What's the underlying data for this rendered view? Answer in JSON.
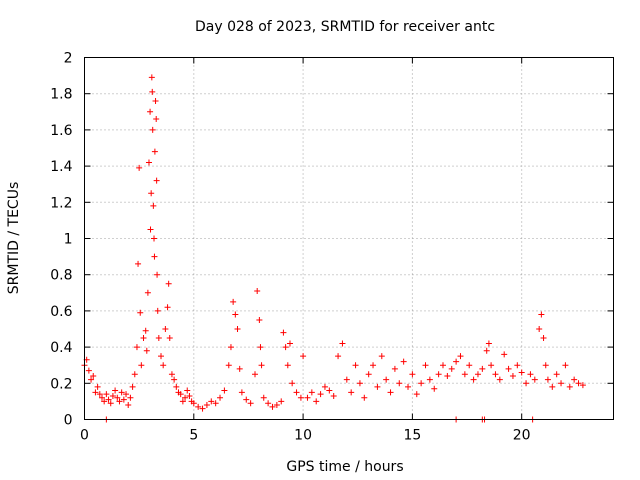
{
  "chart_data": {
    "type": "scatter",
    "title": "Day 028 of 2023, SRMTID for receiver antc",
    "xlabel": "GPS time / hours",
    "ylabel": "SRMTID / TECUs",
    "xlim": [
      0,
      24.2
    ],
    "ylim": [
      0,
      2
    ],
    "xticks": [
      0,
      5,
      10,
      15,
      20
    ],
    "xtick_labels": [
      "0",
      "5",
      "10",
      "15",
      "20"
    ],
    "yticks": [
      0,
      0.2,
      0.4,
      0.6,
      0.8,
      1,
      1.2,
      1.4,
      1.6,
      1.8,
      2
    ],
    "ytick_labels": [
      "0",
      "0.2",
      "0.4",
      "0.6",
      "0.8",
      "1",
      "1.2",
      "1.4",
      "1.6",
      "1.8",
      "2"
    ],
    "grid": true,
    "marker": "plus",
    "color": "#ff0000",
    "series": [
      {
        "name": "SRMTID",
        "points": [
          [
            0.0,
            0.3
          ],
          [
            0.1,
            0.33
          ],
          [
            0.2,
            0.27
          ],
          [
            0.3,
            0.22
          ],
          [
            0.4,
            0.24
          ],
          [
            0.5,
            0.15
          ],
          [
            0.6,
            0.18
          ],
          [
            0.7,
            0.14
          ],
          [
            0.8,
            0.12
          ],
          [
            0.9,
            0.1
          ],
          [
            1.0,
            0.14
          ],
          [
            1.1,
            0.11
          ],
          [
            1.2,
            0.09
          ],
          [
            1.3,
            0.13
          ],
          [
            1.4,
            0.16
          ],
          [
            1.5,
            0.12
          ],
          [
            1.6,
            0.1
          ],
          [
            1.7,
            0.15
          ],
          [
            1.8,
            0.11
          ],
          [
            1.9,
            0.14
          ],
          [
            2.0,
            0.08
          ],
          [
            2.1,
            0.12
          ],
          [
            2.2,
            0.18
          ],
          [
            2.3,
            0.25
          ],
          [
            2.4,
            0.4
          ],
          [
            2.45,
            0.86
          ],
          [
            2.5,
            1.39
          ],
          [
            2.55,
            0.59
          ],
          [
            2.6,
            0.3
          ],
          [
            2.7,
            0.45
          ],
          [
            2.8,
            0.49
          ],
          [
            2.85,
            0.38
          ],
          [
            2.9,
            0.7
          ],
          [
            2.95,
            1.42
          ],
          [
            3.0,
            1.7
          ],
          [
            3.02,
            1.05
          ],
          [
            3.05,
            1.25
          ],
          [
            3.08,
            1.89
          ],
          [
            3.1,
            1.81
          ],
          [
            3.12,
            1.6
          ],
          [
            3.15,
            1.18
          ],
          [
            3.18,
            1.0
          ],
          [
            3.2,
            0.9
          ],
          [
            3.22,
            1.48
          ],
          [
            3.25,
            1.76
          ],
          [
            3.28,
            1.66
          ],
          [
            3.3,
            1.32
          ],
          [
            3.32,
            0.8
          ],
          [
            3.35,
            0.6
          ],
          [
            3.4,
            0.45
          ],
          [
            3.5,
            0.35
          ],
          [
            3.6,
            0.3
          ],
          [
            3.7,
            0.5
          ],
          [
            3.8,
            0.62
          ],
          [
            3.85,
            0.75
          ],
          [
            3.9,
            0.45
          ],
          [
            4.0,
            0.25
          ],
          [
            4.1,
            0.22
          ],
          [
            4.2,
            0.18
          ],
          [
            4.3,
            0.15
          ],
          [
            4.4,
            0.14
          ],
          [
            4.5,
            0.1
          ],
          [
            4.6,
            0.12
          ],
          [
            4.7,
            0.16
          ],
          [
            4.8,
            0.13
          ],
          [
            4.9,
            0.1
          ],
          [
            5.0,
            0.09
          ],
          [
            5.2,
            0.07
          ],
          [
            5.4,
            0.06
          ],
          [
            5.6,
            0.08
          ],
          [
            5.8,
            0.1
          ],
          [
            6.0,
            0.09
          ],
          [
            6.2,
            0.12
          ],
          [
            6.4,
            0.16
          ],
          [
            6.6,
            0.3
          ],
          [
            6.7,
            0.4
          ],
          [
            6.8,
            0.65
          ],
          [
            6.9,
            0.58
          ],
          [
            7.0,
            0.5
          ],
          [
            7.1,
            0.28
          ],
          [
            7.2,
            0.15
          ],
          [
            7.4,
            0.11
          ],
          [
            7.6,
            0.09
          ],
          [
            7.8,
            0.25
          ],
          [
            7.9,
            0.71
          ],
          [
            8.0,
            0.55
          ],
          [
            8.05,
            0.4
          ],
          [
            8.1,
            0.3
          ],
          [
            8.2,
            0.12
          ],
          [
            8.4,
            0.09
          ],
          [
            8.6,
            0.07
          ],
          [
            8.8,
            0.08
          ],
          [
            9.0,
            0.1
          ],
          [
            9.1,
            0.48
          ],
          [
            9.2,
            0.4
          ],
          [
            9.3,
            0.3
          ],
          [
            9.4,
            0.42
          ],
          [
            9.5,
            0.2
          ],
          [
            9.7,
            0.15
          ],
          [
            9.9,
            0.12
          ],
          [
            10.0,
            0.35
          ],
          [
            10.2,
            0.12
          ],
          [
            10.4,
            0.15
          ],
          [
            10.6,
            0.1
          ],
          [
            10.8,
            0.14
          ],
          [
            11.0,
            0.18
          ],
          [
            11.2,
            0.16
          ],
          [
            11.4,
            0.13
          ],
          [
            11.6,
            0.35
          ],
          [
            11.8,
            0.42
          ],
          [
            12.0,
            0.22
          ],
          [
            12.2,
            0.15
          ],
          [
            12.4,
            0.3
          ],
          [
            12.6,
            0.2
          ],
          [
            12.8,
            0.12
          ],
          [
            13.0,
            0.25
          ],
          [
            13.2,
            0.3
          ],
          [
            13.4,
            0.18
          ],
          [
            13.6,
            0.35
          ],
          [
            13.8,
            0.22
          ],
          [
            14.0,
            0.15
          ],
          [
            14.2,
            0.28
          ],
          [
            14.4,
            0.2
          ],
          [
            14.6,
            0.32
          ],
          [
            14.8,
            0.18
          ],
          [
            15.0,
            0.25
          ],
          [
            15.2,
            0.14
          ],
          [
            15.4,
            0.2
          ],
          [
            15.6,
            0.3
          ],
          [
            15.8,
            0.22
          ],
          [
            16.0,
            0.17
          ],
          [
            16.2,
            0.25
          ],
          [
            16.4,
            0.3
          ],
          [
            16.6,
            0.24
          ],
          [
            16.8,
            0.28
          ],
          [
            17.0,
            0.32
          ],
          [
            17.2,
            0.35
          ],
          [
            17.4,
            0.25
          ],
          [
            17.6,
            0.3
          ],
          [
            17.8,
            0.22
          ],
          [
            18.0,
            0.25
          ],
          [
            18.2,
            0.28
          ],
          [
            18.4,
            0.38
          ],
          [
            18.5,
            0.42
          ],
          [
            18.6,
            0.3
          ],
          [
            18.8,
            0.25
          ],
          [
            19.0,
            0.22
          ],
          [
            19.2,
            0.36
          ],
          [
            19.4,
            0.28
          ],
          [
            19.6,
            0.24
          ],
          [
            19.8,
            0.3
          ],
          [
            20.0,
            0.26
          ],
          [
            20.2,
            0.2
          ],
          [
            20.4,
            0.25
          ],
          [
            20.6,
            0.22
          ],
          [
            20.8,
            0.5
          ],
          [
            20.9,
            0.58
          ],
          [
            21.0,
            0.45
          ],
          [
            21.1,
            0.3
          ],
          [
            21.2,
            0.22
          ],
          [
            21.4,
            0.18
          ],
          [
            21.6,
            0.25
          ],
          [
            21.8,
            0.2
          ],
          [
            22.0,
            0.3
          ],
          [
            22.2,
            0.18
          ],
          [
            22.4,
            0.22
          ],
          [
            22.6,
            0.2
          ],
          [
            22.8,
            0.19
          ],
          [
            1.0,
            0.0
          ],
          [
            17.0,
            0.0
          ],
          [
            18.2,
            0.0
          ],
          [
            18.3,
            0.0
          ],
          [
            20.5,
            0.0
          ]
        ]
      }
    ]
  }
}
